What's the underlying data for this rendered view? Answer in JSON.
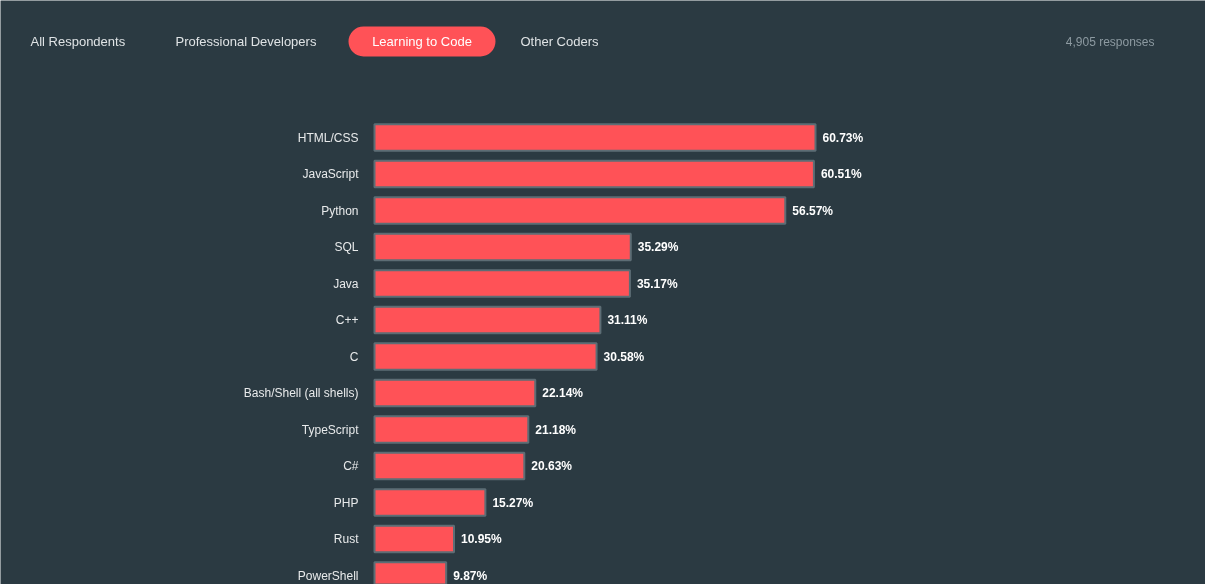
{
  "chart_data": {
    "type": "bar",
    "orientation": "horizontal",
    "subtitle": "Learning to Code",
    "annotations": [
      "All Respondents",
      "Professional Developers",
      "Other Coders",
      "4,905 responses"
    ],
    "categories": [
      "HTML/CSS",
      "JavaScript",
      "Python",
      "SQL",
      "Java",
      "C++",
      "C",
      "Bash/Shell (all shells)",
      "TypeScript",
      "C#",
      "PHP",
      "Rust",
      "PowerShell"
    ],
    "values": [
      60.73,
      60.51,
      56.57,
      35.29,
      35.17,
      31.11,
      30.58,
      22.14,
      21.18,
      20.63,
      15.27,
      10.95,
      9.87
    ],
    "value_labels": [
      "60.73%",
      "60.51%",
      "56.57%",
      "35.29%",
      "35.17%",
      "31.11%",
      "30.58%",
      "22.14%",
      "21.18%",
      "20.63%",
      "15.27%",
      "10.95%",
      "9.87%"
    ],
    "color": "#ff5257",
    "grid": false
  }
}
